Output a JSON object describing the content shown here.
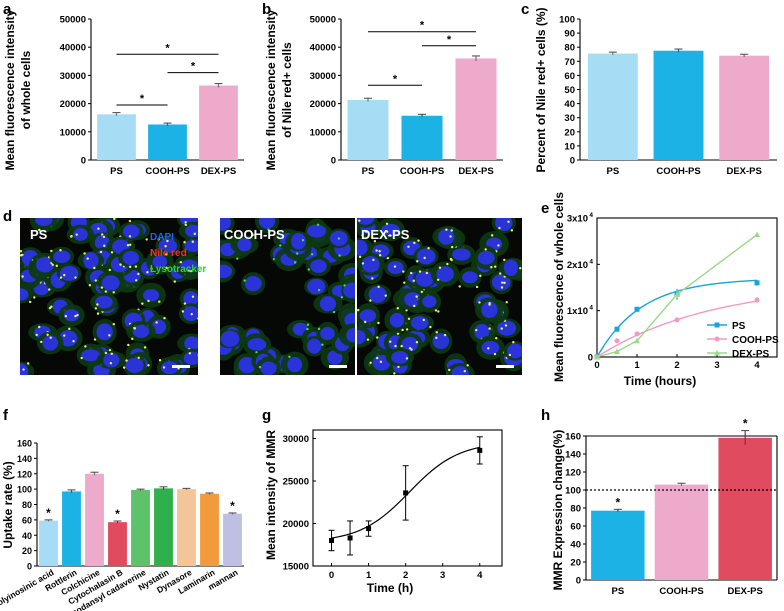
{
  "panel_letters": [
    "a",
    "b",
    "c",
    "d",
    "e",
    "f",
    "g",
    "h"
  ],
  "chart_data": [
    {
      "panel": "a",
      "type": "bar",
      "ylabel_lines": [
        "Mean fluorescence intensity",
        "of whole cells"
      ],
      "categories": [
        "PS",
        "COOH-PS",
        "DEX-PS"
      ],
      "values": [
        16200,
        12600,
        26400
      ],
      "errors": [
        600,
        500,
        700
      ],
      "colors": [
        "#a6ddf4",
        "#1cb2e6",
        "#eeaacb"
      ],
      "ylim": [
        0,
        50000
      ],
      "yticks": [
        0,
        10000,
        20000,
        30000,
        40000,
        50000
      ],
      "significance": [
        {
          "from": 0,
          "to": 1,
          "y": 19500,
          "label": "*"
        },
        {
          "from": 0,
          "to": 2,
          "y": 37500,
          "label": "*"
        },
        {
          "from": 1,
          "to": 2,
          "y": 31000,
          "label": "*"
        }
      ]
    },
    {
      "panel": "b",
      "type": "bar",
      "ylabel_lines": [
        "Mean fluorescence intensity",
        "of Nile red+ cells"
      ],
      "categories": [
        "PS",
        "COOH-PS",
        "DEX-PS"
      ],
      "values": [
        21300,
        15700,
        36000
      ],
      "errors": [
        600,
        500,
        900
      ],
      "colors": [
        "#a6ddf4",
        "#1cb2e6",
        "#eeaacb"
      ],
      "ylim": [
        0,
        50000
      ],
      "yticks": [
        0,
        10000,
        20000,
        30000,
        40000,
        50000
      ],
      "significance": [
        {
          "from": 0,
          "to": 1,
          "y": 26500,
          "label": "*"
        },
        {
          "from": 0,
          "to": 2,
          "y": 45500,
          "label": "*"
        },
        {
          "from": 1,
          "to": 2,
          "y": 40500,
          "label": "*"
        }
      ]
    },
    {
      "panel": "c",
      "type": "bar",
      "ylabel_lines": [
        "Percent of Nile red+ cells (%)"
      ],
      "categories": [
        "PS",
        "COOH-PS",
        "DEX-PS"
      ],
      "values": [
        75.5,
        77.5,
        74.0
      ],
      "errors": [
        1.0,
        1.2,
        1.0
      ],
      "colors": [
        "#a6ddf4",
        "#1cb2e6",
        "#eeaacb"
      ],
      "ylim": [
        0,
        100
      ],
      "yticks": [
        0,
        10,
        20,
        30,
        40,
        50,
        60,
        70,
        80,
        90,
        100
      ],
      "significance": []
    },
    {
      "panel": "e",
      "type": "line",
      "ylabel": "Mean fluorescence of whole cells",
      "xlabel": "Time (hours)",
      "xlim": [
        0,
        4.5
      ],
      "ylim": [
        0,
        30000
      ],
      "xticks": [
        0,
        1,
        2,
        3,
        4
      ],
      "ytick_values": [
        0,
        10000,
        20000,
        30000
      ],
      "ytick_labels": [
        {
          "base": "0",
          "exp": ""
        },
        {
          "base": "1x10",
          "exp": "4"
        },
        {
          "base": "2x10",
          "exp": "4"
        },
        {
          "base": "3x10",
          "exp": "4"
        }
      ],
      "series": [
        {
          "name": "PS",
          "color": "#1aa3d9",
          "marker": "square",
          "x": [
            0,
            0.5,
            1,
            2,
            4
          ],
          "y": [
            0,
            6000,
            10300,
            13500,
            16000
          ],
          "err": [
            0,
            400,
            500,
            1200,
            600
          ]
        },
        {
          "name": "COOH-PS",
          "color": "#f29ac0",
          "marker": "circle",
          "x": [
            0,
            0.5,
            1,
            2,
            4
          ],
          "y": [
            0,
            3500,
            5000,
            8000,
            12300
          ],
          "err": [
            0,
            300,
            300,
            400,
            600
          ]
        },
        {
          "name": "DEX-PS",
          "color": "#9bd88a",
          "marker": "triangle",
          "x": [
            0,
            0.5,
            1,
            2,
            4
          ],
          "y": [
            0,
            1200,
            3500,
            13500,
            26400
          ],
          "err": [
            0,
            200,
            300,
            700,
            500
          ]
        }
      ]
    },
    {
      "panel": "f",
      "type": "bar",
      "ylabel": "Uptake rate (%)",
      "categories": [
        "Polyinosinic acid",
        "Rottlerin",
        "Colchicine",
        "Cytochalasin B",
        "Monodansyl cadaverine",
        "Nystatin",
        "Dynasore",
        "Laminarin",
        "mannan"
      ],
      "values": [
        59,
        97,
        120,
        57,
        99,
        101,
        100,
        94,
        68
      ],
      "errors": [
        1,
        2,
        2,
        1.5,
        1,
        2,
        1,
        1,
        1
      ],
      "colors": [
        "#a6ddf4",
        "#1cb2e6",
        "#eeaacb",
        "#e04b5f",
        "#5cc36b",
        "#2fb04c",
        "#f5c59a",
        "#f39a3c",
        "#bfbfe3"
      ],
      "stars": [
        true,
        false,
        false,
        true,
        false,
        false,
        false,
        false,
        true
      ],
      "ylim": [
        0,
        160
      ],
      "yticks": [
        0,
        20,
        40,
        60,
        80,
        100,
        120,
        140,
        160
      ]
    },
    {
      "panel": "g",
      "type": "line",
      "ylabel": "Mean intensity of MMR",
      "xlabel": "Time (h)",
      "xlim": [
        -0.5,
        4.6
      ],
      "ylim": [
        15000,
        31000
      ],
      "xticks": [
        0,
        1,
        2,
        3,
        4
      ],
      "yticks": [
        15000,
        20000,
        25000,
        30000
      ],
      "series": [
        {
          "name": "MMR",
          "color": "#000000",
          "marker": "square",
          "x": [
            0,
            0.5,
            1,
            2,
            4
          ],
          "y": [
            18000,
            18300,
            19400,
            23600,
            28600
          ],
          "err": [
            1200,
            2000,
            900,
            3200,
            1600
          ]
        }
      ]
    },
    {
      "panel": "h",
      "type": "bar",
      "ylabel": "MMR Expression change(%)",
      "categories": [
        "PS",
        "COOH-PS",
        "DEX-PS"
      ],
      "values": [
        77,
        106,
        158
      ],
      "errors": [
        1.5,
        1.5,
        8
      ],
      "colors": [
        "#1cb2e6",
        "#eeaacb",
        "#e04b5f"
      ],
      "stars": [
        true,
        false,
        true
      ],
      "ylim": [
        0,
        160
      ],
      "yticks": [
        0,
        20,
        40,
        60,
        80,
        100,
        120,
        140,
        160
      ],
      "reference_line": 100
    }
  ],
  "micrograph_labels": {
    "d": [
      "PS",
      "COOH-PS",
      "DEX-PS"
    ],
    "stain_legend": [
      {
        "text": "DAPI",
        "color": "#1e62ff"
      },
      {
        "text": "Nile red",
        "color": "#ff2a2a"
      },
      {
        "text": "Lysotracker",
        "color": "#2ed12e"
      }
    ]
  }
}
